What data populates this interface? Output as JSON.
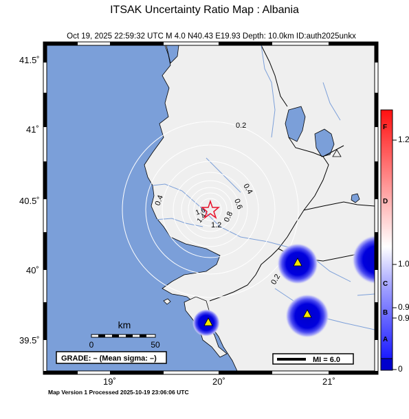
{
  "title": "ITSAK Uncertainty Ratio Map : Albania",
  "subtitle": "Oct 19, 2025 22:59:32 UTC   M 4.0   N40.43 E19.93   Depth: 10.0km   ID:auth2025unkx",
  "lat_labels": [
    "41.5˚",
    "41˚",
    "40.5˚",
    "40˚",
    "39.5˚"
  ],
  "lon_labels": [
    "19˚",
    "20˚",
    "21˚"
  ],
  "contour_labels": [
    "0.2",
    "0.4",
    "0.6",
    "0.4",
    "0.8",
    "1.2",
    "1.6",
    "1.4",
    "0.2"
  ],
  "scale_bar": {
    "unit": "km",
    "start": "0",
    "end": "50"
  },
  "grade_label": "GRADE: – (Mean sigma: –)",
  "mi_label": "MI = 6.0",
  "footer": "Map Version 1 Processed 2025-10-19 23:06:06 UTC",
  "colorbar": {
    "values": [
      "1.2",
      "1.0",
      "0.9",
      "0.9",
      "0"
    ],
    "grades": [
      "F",
      "D",
      "C",
      "B",
      "A"
    ]
  },
  "colors": {
    "sea": "#7b9fd9",
    "land": "#efefef",
    "epicenter": "#e8102a",
    "station": "#f5e600",
    "contour": "#ffffff"
  },
  "icons": {
    "epicenter": "star-icon",
    "station": "triangle-icon"
  }
}
